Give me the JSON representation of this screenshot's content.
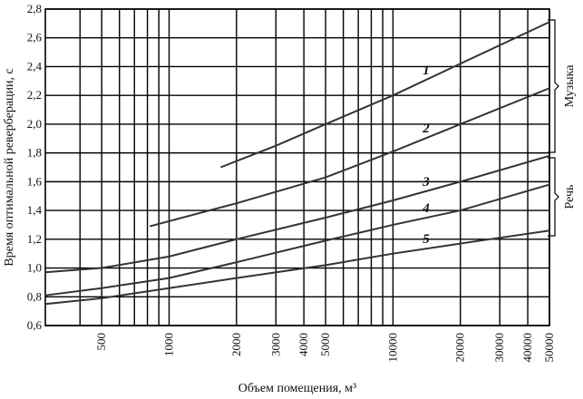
{
  "chart_data": {
    "type": "line",
    "x_label": "Объем помещения, м³",
    "y_label": "Время оптимальной реверберации, с",
    "xscale": "log",
    "xlim": [
      280,
      50000
    ],
    "ylim": [
      0.6,
      2.8
    ],
    "xticks": [
      500,
      1000,
      2000,
      3000,
      4000,
      5000,
      10000,
      20000,
      30000,
      40000,
      50000
    ],
    "xminor": [
      400,
      600,
      700,
      800,
      900,
      6000,
      7000,
      8000,
      9000
    ],
    "yticks": [
      {
        "value": 0.6,
        "label": "0,6"
      },
      {
        "value": 0.8,
        "label": "0,8"
      },
      {
        "value": 1.0,
        "label": "1,0"
      },
      {
        "value": 1.2,
        "label": "1,2"
      },
      {
        "value": 1.4,
        "label": "1,4"
      },
      {
        "value": 1.6,
        "label": "1,6"
      },
      {
        "value": 1.8,
        "label": "1,8"
      },
      {
        "value": 2.0,
        "label": "2,0"
      },
      {
        "value": 2.2,
        "label": "2,2"
      },
      {
        "value": 2.4,
        "label": "2,4"
      },
      {
        "value": 2.6,
        "label": "2,6"
      },
      {
        "value": 2.8,
        "label": "2,8"
      }
    ],
    "grid": true,
    "color": "#333333",
    "series": [
      {
        "name": "1",
        "x": [
          1700,
          3000,
          5000,
          10000,
          20000,
          50000
        ],
        "values": [
          1.7,
          1.85,
          2.0,
          2.2,
          2.42,
          2.71
        ]
      },
      {
        "name": "2",
        "x": [
          820,
          2000,
          5000,
          10000,
          20000,
          50000
        ],
        "values": [
          1.29,
          1.45,
          1.63,
          1.81,
          2.0,
          2.25
        ]
      },
      {
        "name": "3",
        "x": [
          280,
          500,
          1000,
          2000,
          5000,
          10000,
          20000,
          50000
        ],
        "values": [
          0.97,
          1.0,
          1.08,
          1.2,
          1.35,
          1.47,
          1.6,
          1.78
        ]
      },
      {
        "name": "4",
        "x": [
          280,
          500,
          1000,
          2000,
          5000,
          10000,
          20000,
          50000
        ],
        "values": [
          0.81,
          0.86,
          0.93,
          1.04,
          1.19,
          1.3,
          1.4,
          1.58
        ]
      },
      {
        "name": "5",
        "x": [
          280,
          500,
          1000,
          2000,
          5000,
          10000,
          20000,
          50000
        ],
        "values": [
          0.75,
          0.79,
          0.86,
          0.93,
          1.02,
          1.1,
          1.17,
          1.26
        ]
      }
    ],
    "annotations": [
      "Музыка",
      "Речь"
    ]
  }
}
